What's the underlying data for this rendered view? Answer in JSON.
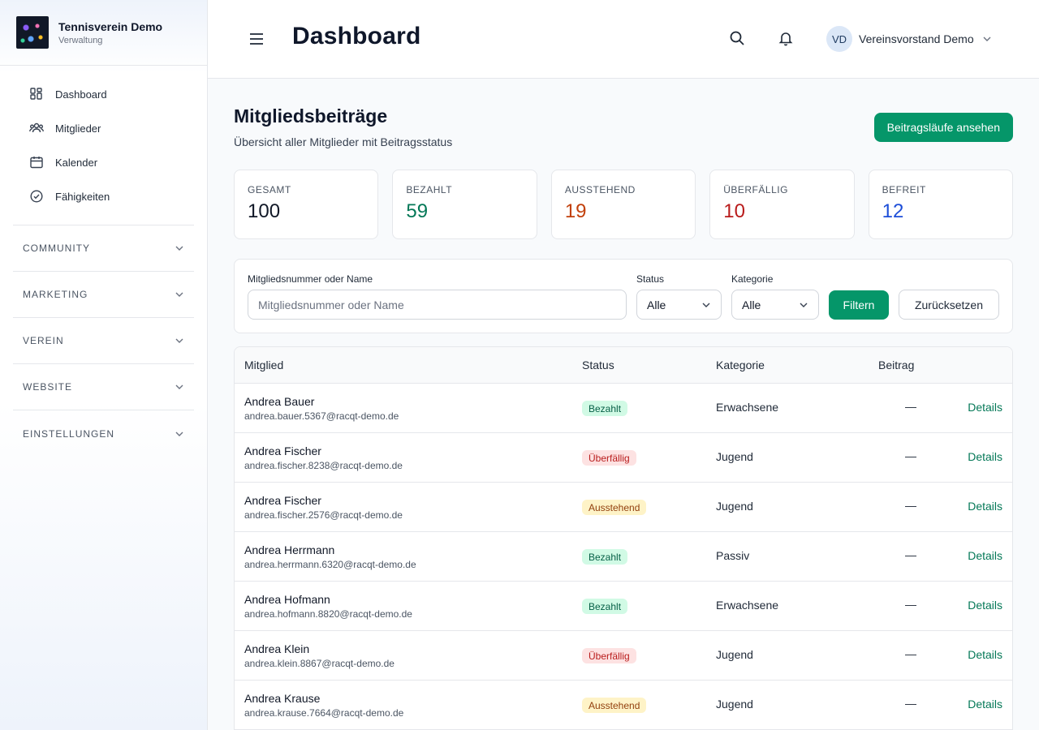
{
  "brand": {
    "name": "Tennisverein Demo",
    "subtitle": "Verwaltung"
  },
  "sidebar": {
    "items": [
      {
        "label": "Dashboard",
        "icon": "dashboard-icon"
      },
      {
        "label": "Mitglieder",
        "icon": "users-icon"
      },
      {
        "label": "Kalender",
        "icon": "calendar-icon"
      },
      {
        "label": "Fähigkeiten",
        "icon": "check-circle-icon"
      }
    ],
    "groups": [
      "COMMUNITY",
      "MARKETING",
      "VEREIN",
      "WEBSITE",
      "EINSTELLUNGEN"
    ]
  },
  "header": {
    "title": "Dashboard",
    "user": {
      "initials": "VD",
      "name": "Vereinsvorstand Demo"
    }
  },
  "main": {
    "title": "Mitgliedsbeiträge",
    "subtitle": "Übersicht aller Mitglieder mit Beitragsstatus",
    "action_label": "Beitragsläufe ansehen"
  },
  "stats": [
    {
      "label": "GESAMT",
      "value": "100",
      "color": "#111827"
    },
    {
      "label": "BEZAHLT",
      "value": "59",
      "color": "#047857"
    },
    {
      "label": "AUSSTEHEND",
      "value": "19",
      "color": "#c2410c"
    },
    {
      "label": "ÜBERFÄLLIG",
      "value": "10",
      "color": "#b91c1c"
    },
    {
      "label": "BEFREIT",
      "value": "12",
      "color": "#1d4ed8"
    }
  ],
  "filters": {
    "search_label": "Mitgliedsnummer oder Name",
    "search_placeholder": "Mitgliedsnummer oder Name",
    "search_value": "",
    "status_label": "Status",
    "status_value": "Alle",
    "category_label": "Kategorie",
    "category_value": "Alle",
    "filter_label": "Filtern",
    "reset_label": "Zurücksetzen"
  },
  "table": {
    "headers": {
      "member": "Mitglied",
      "status": "Status",
      "category": "Kategorie",
      "fee": "Beitrag"
    },
    "details_label": "Details",
    "rows": [
      {
        "name": "Andrea Bauer",
        "email": "andrea.bauer.5367@racqt-demo.de",
        "status": "Bezahlt",
        "status_kind": "paid",
        "category": "Erwachsene",
        "fee": "—"
      },
      {
        "name": "Andrea Fischer",
        "email": "andrea.fischer.8238@racqt-demo.de",
        "status": "Überfällig",
        "status_kind": "overdue",
        "category": "Jugend",
        "fee": "—"
      },
      {
        "name": "Andrea Fischer",
        "email": "andrea.fischer.2576@racqt-demo.de",
        "status": "Ausstehend",
        "status_kind": "pending",
        "category": "Jugend",
        "fee": "—"
      },
      {
        "name": "Andrea Herrmann",
        "email": "andrea.herrmann.6320@racqt-demo.de",
        "status": "Bezahlt",
        "status_kind": "paid",
        "category": "Passiv",
        "fee": "—"
      },
      {
        "name": "Andrea Hofmann",
        "email": "andrea.hofmann.8820@racqt-demo.de",
        "status": "Bezahlt",
        "status_kind": "paid",
        "category": "Erwachsene",
        "fee": "—"
      },
      {
        "name": "Andrea Klein",
        "email": "andrea.klein.8867@racqt-demo.de",
        "status": "Überfällig",
        "status_kind": "overdue",
        "category": "Jugend",
        "fee": "—"
      },
      {
        "name": "Andrea Krause",
        "email": "andrea.krause.7664@racqt-demo.de",
        "status": "Ausstehend",
        "status_kind": "pending",
        "category": "Jugend",
        "fee": "—"
      }
    ]
  }
}
